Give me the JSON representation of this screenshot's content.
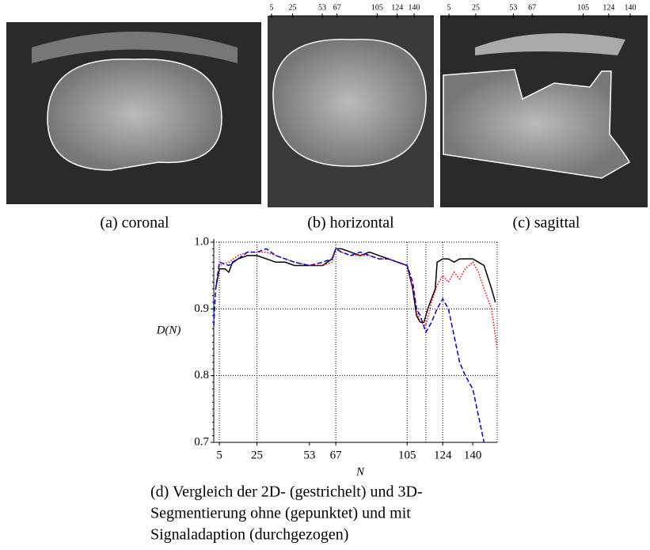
{
  "panels": [
    {
      "caption": "(a) coronal"
    },
    {
      "caption": "(b) horizontal",
      "ticks": [
        5,
        25,
        53,
        67,
        105,
        124,
        140
      ],
      "xlim": [
        1.25,
        158.7
      ]
    },
    {
      "caption": "(c) sagittal",
      "ticks": [
        5,
        25,
        53,
        67,
        105,
        124,
        140
      ],
      "xlim": [
        -1.5,
        153
      ]
    }
  ],
  "chart_data": {
    "type": "line",
    "caption": [
      "(d) Vergleich der 2D- (gestrichelt) und 3D-",
      "Segmentierung ohne (gepunktet) und mit",
      "Signaladaption (durchgezogen)"
    ],
    "xlabel": "N",
    "ylabel": "D(N)",
    "xlim": [
      2,
      153
    ],
    "ylim": [
      0.7,
      1.0
    ],
    "xticks": [
      5,
      25,
      53,
      67,
      105,
      124,
      140
    ],
    "yticks": [
      0.7,
      0.8,
      0.9,
      {
        "value": 1,
        "label": "1.0"
      }
    ],
    "xgrid": [
      5,
      25,
      67,
      105,
      115,
      124,
      153
    ],
    "grid": true,
    "series": [
      {
        "color": "#000000",
        "dash": "solid",
        "x": [
          3,
          5,
          8,
          10,
          12,
          15,
          20,
          25,
          30,
          35,
          40,
          45,
          53,
          60,
          65,
          67,
          70,
          75,
          80,
          85,
          90,
          95,
          100,
          105,
          108,
          110,
          112,
          114,
          116,
          118,
          120,
          121,
          124,
          127,
          130,
          133,
          136,
          140,
          143,
          146,
          150,
          152
        ],
        "values": [
          0.93,
          0.96,
          0.96,
          0.955,
          0.97,
          0.975,
          0.98,
          0.98,
          0.975,
          0.97,
          0.97,
          0.965,
          0.965,
          0.965,
          0.975,
          0.99,
          0.99,
          0.985,
          0.98,
          0.985,
          0.98,
          0.975,
          0.97,
          0.965,
          0.93,
          0.89,
          0.88,
          0.88,
          0.9,
          0.915,
          0.93,
          0.97,
          0.975,
          0.975,
          0.97,
          0.975,
          0.975,
          0.975,
          0.97,
          0.965,
          0.93,
          0.91
        ]
      },
      {
        "color": "#ff0000",
        "dash": "dotted",
        "x": [
          3,
          5,
          10,
          15,
          20,
          25,
          30,
          35,
          40,
          45,
          53,
          60,
          65,
          67,
          70,
          75,
          80,
          85,
          90,
          95,
          100,
          105,
          108,
          110,
          112,
          115,
          118,
          121,
          124,
          127,
          130,
          133,
          136,
          140,
          143,
          146,
          150,
          153
        ],
        "values": [
          0.93,
          0.965,
          0.97,
          0.98,
          0.985,
          0.985,
          0.985,
          0.98,
          0.975,
          0.97,
          0.965,
          0.965,
          0.97,
          0.99,
          0.985,
          0.98,
          0.98,
          0.98,
          0.975,
          0.975,
          0.97,
          0.965,
          0.93,
          0.9,
          0.88,
          0.875,
          0.91,
          0.935,
          0.95,
          0.94,
          0.955,
          0.945,
          0.96,
          0.97,
          0.955,
          0.93,
          0.9,
          0.84
        ]
      },
      {
        "color": "#0000cc",
        "dash": "dashed",
        "x": [
          2,
          3,
          5,
          10,
          15,
          20,
          25,
          30,
          35,
          40,
          45,
          53,
          60,
          65,
          67,
          70,
          75,
          80,
          85,
          90,
          95,
          100,
          105,
          108,
          110,
          112,
          115,
          118,
          121,
          124,
          127,
          130,
          133,
          136,
          140,
          143,
          146
        ],
        "values": [
          0.875,
          0.93,
          0.97,
          0.965,
          0.975,
          0.985,
          0.985,
          0.99,
          0.98,
          0.975,
          0.97,
          0.965,
          0.97,
          0.975,
          0.99,
          0.985,
          0.98,
          0.985,
          0.98,
          0.975,
          0.975,
          0.97,
          0.965,
          0.94,
          0.9,
          0.89,
          0.865,
          0.88,
          0.9,
          0.915,
          0.9,
          0.86,
          0.82,
          0.8,
          0.78,
          0.74,
          0.7
        ]
      }
    ]
  }
}
